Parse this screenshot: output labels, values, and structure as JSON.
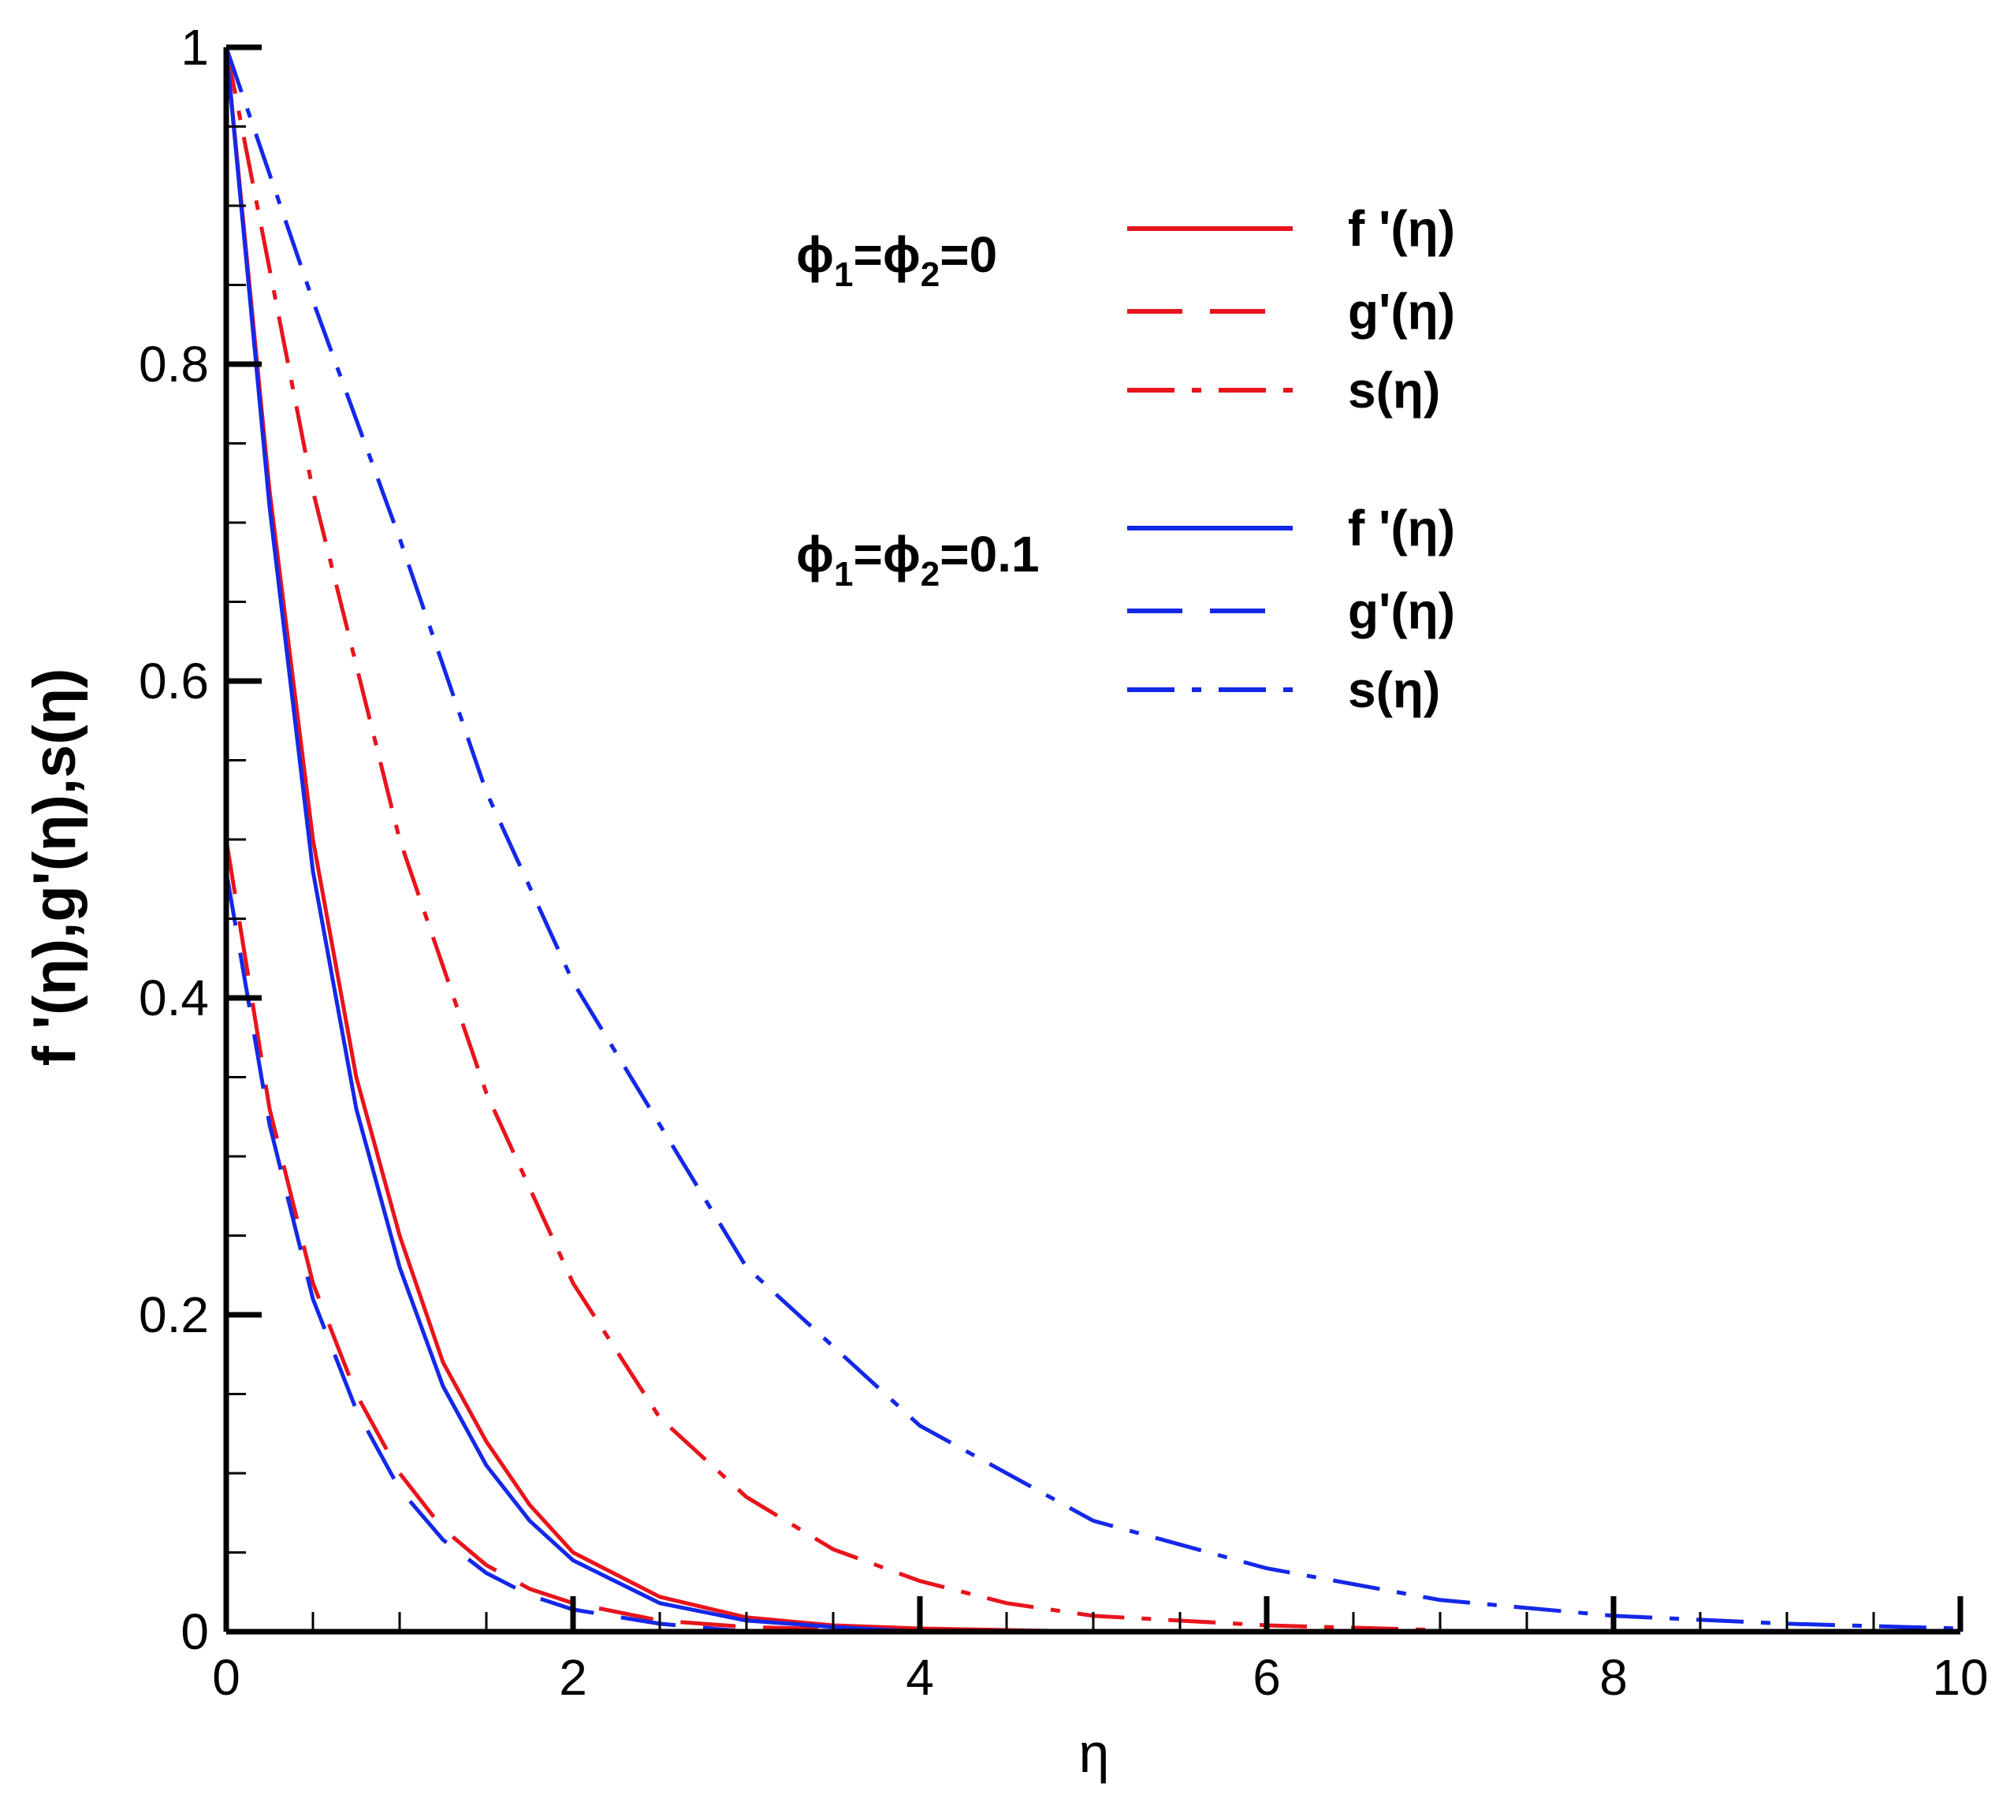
{
  "chart_data": {
    "type": "line",
    "xlabel": "η",
    "ylabel": "f '(η),g'(η),s(η)",
    "xlim": [
      0,
      10
    ],
    "ylim": [
      0,
      1
    ],
    "xticks": [
      "0",
      "2",
      "4",
      "6",
      "8",
      "10"
    ],
    "yticks": [
      "0",
      "0.2",
      "0.4",
      "0.6",
      "0.8",
      "1"
    ],
    "grid": false,
    "legend_position": "top-right",
    "legend_groups": [
      {
        "label_base": "ϕ",
        "label_sub1": "1",
        "label_mid": "=ϕ",
        "label_sub2": "2",
        "label_end": "=0"
      },
      {
        "label_base": "ϕ",
        "label_sub1": "1",
        "label_mid": "=ϕ",
        "label_sub2": "2",
        "label_end": "=0.1"
      }
    ],
    "series": [
      {
        "name": "f '(η)",
        "group": 0,
        "color": "#e8141c",
        "dash": "solid",
        "x": [
          0,
          0.25,
          0.5,
          0.75,
          1.0,
          1.25,
          1.5,
          1.75,
          2.0,
          2.5,
          3.0,
          3.5,
          4.0,
          5.0
        ],
        "y": [
          1.0,
          0.72,
          0.5,
          0.35,
          0.25,
          0.17,
          0.12,
          0.08,
          0.05,
          0.022,
          0.009,
          0.004,
          0.002,
          0.0
        ]
      },
      {
        "name": "g'(η)",
        "group": 0,
        "color": "#e8141c",
        "dash": "dash",
        "x": [
          0,
          0.25,
          0.5,
          0.75,
          1.0,
          1.25,
          1.5,
          1.75,
          2.0,
          2.5,
          3.0,
          4.0
        ],
        "y": [
          0.5,
          0.33,
          0.22,
          0.15,
          0.1,
          0.065,
          0.042,
          0.027,
          0.018,
          0.007,
          0.003,
          0.0
        ]
      },
      {
        "name": "s(η)",
        "group": 0,
        "color": "#e8141c",
        "dash": "dashdot",
        "x": [
          0,
          0.5,
          1.0,
          1.5,
          2.0,
          2.5,
          3.0,
          3.5,
          4.0,
          4.5,
          5.0,
          6.0,
          7.0
        ],
        "y": [
          1.0,
          0.72,
          0.5,
          0.34,
          0.22,
          0.135,
          0.085,
          0.052,
          0.032,
          0.018,
          0.01,
          0.004,
          0.001
        ]
      },
      {
        "name": "f '(η)",
        "group": 1,
        "color": "#1428e8",
        "dash": "solid",
        "x": [
          0,
          0.25,
          0.5,
          0.75,
          1.0,
          1.25,
          1.5,
          1.75,
          2.0,
          2.5,
          3.0,
          3.5,
          4.0
        ],
        "y": [
          1.0,
          0.71,
          0.48,
          0.33,
          0.23,
          0.155,
          0.105,
          0.07,
          0.045,
          0.018,
          0.007,
          0.003,
          0.0
        ]
      },
      {
        "name": "g'(η)",
        "group": 1,
        "color": "#1428e8",
        "dash": "dash",
        "x": [
          0,
          0.25,
          0.5,
          0.75,
          1.0,
          1.25,
          1.5,
          1.75,
          2.0,
          2.5,
          3.0
        ],
        "y": [
          0.48,
          0.32,
          0.21,
          0.14,
          0.09,
          0.058,
          0.037,
          0.023,
          0.014,
          0.005,
          0.0
        ]
      },
      {
        "name": "s(η)",
        "group": 1,
        "color": "#1428e8",
        "dash": "dashdot",
        "x": [
          0,
          0.5,
          1.0,
          1.5,
          2.0,
          3.0,
          4.0,
          5.0,
          6.0,
          7.0,
          8.0,
          9.0,
          10.0
        ],
        "y": [
          1.0,
          0.84,
          0.69,
          0.53,
          0.41,
          0.23,
          0.13,
          0.07,
          0.04,
          0.02,
          0.01,
          0.005,
          0.002
        ]
      }
    ]
  }
}
